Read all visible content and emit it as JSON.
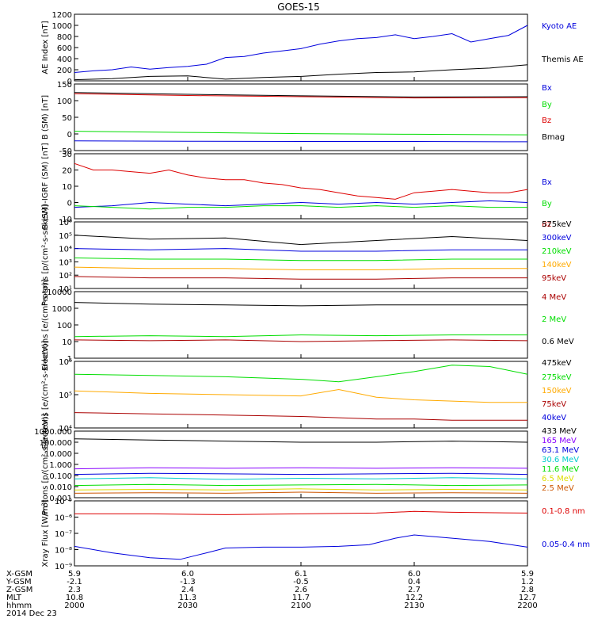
{
  "title": "GOES-15",
  "colors": {
    "blue": "#0000dd",
    "green": "#00dd00",
    "red": "#dd0000",
    "darkred": "#aa0000",
    "orange": "#ffaa00",
    "cyan": "#00cccc",
    "purple": "#8800ff",
    "black": "#000000",
    "yellow": "#dddd00",
    "brown": "#cc5500",
    "magenta": "#cc00cc"
  },
  "chart_data": [
    {
      "type": "line",
      "id": "ae",
      "ylabel": "AE Index [nT]",
      "yticks": [
        "1200",
        "1000",
        "800",
        "600",
        "400",
        "200",
        "0"
      ],
      "ylim": [
        0,
        1200
      ],
      "yscale": "linear",
      "series": [
        {
          "name": "Kyoto AE",
          "color": "#0000dd",
          "x": [
            0,
            5,
            10,
            15,
            20,
            25,
            30,
            35,
            40,
            45,
            50,
            55,
            60,
            65,
            70,
            75,
            80,
            85,
            90,
            95,
            100,
            105,
            110,
            115,
            120
          ],
          "y": [
            150,
            180,
            200,
            250,
            210,
            240,
            260,
            300,
            420,
            440,
            500,
            540,
            580,
            660,
            720,
            760,
            780,
            830,
            760,
            800,
            850,
            700,
            760,
            820,
            1000
          ]
        },
        {
          "name": "Themis AE",
          "color": "#000000",
          "x": [
            0,
            10,
            20,
            30,
            40,
            50,
            60,
            70,
            80,
            90,
            100,
            110,
            120
          ],
          "y": [
            20,
            40,
            80,
            90,
            30,
            60,
            80,
            120,
            150,
            160,
            200,
            230,
            290
          ]
        }
      ]
    },
    {
      "type": "line",
      "id": "b",
      "ylabel": "B (SM) [nT]",
      "yticks": [
        "150",
        "100",
        "50",
        "0",
        "-50"
      ],
      "ylim": [
        -60,
        160
      ],
      "yscale": "linear",
      "series": [
        {
          "name": "Bx",
          "color": "#0000dd",
          "x": [
            0,
            30,
            60,
            90,
            120
          ],
          "y": [
            -28,
            -29,
            -30,
            -30,
            -31
          ]
        },
        {
          "name": "By",
          "color": "#00dd00",
          "x": [
            0,
            30,
            60,
            90,
            120
          ],
          "y": [
            4,
            0,
            -4,
            -6,
            -8
          ]
        },
        {
          "name": "Bz",
          "color": "#dd0000",
          "x": [
            0,
            30,
            60,
            90,
            120
          ],
          "y": [
            128,
            122,
            118,
            114,
            115
          ]
        },
        {
          "name": "Bmag",
          "color": "#000000",
          "x": [
            0,
            30,
            60,
            90,
            120
          ],
          "y": [
            132,
            126,
            121,
            117,
            118
          ]
        }
      ]
    },
    {
      "type": "line",
      "id": "db",
      "ylabel": "B (SM)-IGRF (SM) [nT]",
      "yticks": [
        "30",
        "20",
        "10",
        "0",
        "-10"
      ],
      "ylim": [
        -10,
        30
      ],
      "yscale": "linear",
      "series": [
        {
          "name": "Bx",
          "color": "#0000dd",
          "x": [
            0,
            10,
            20,
            30,
            40,
            50,
            60,
            70,
            80,
            90,
            100,
            110,
            120
          ],
          "y": [
            -3,
            -2,
            0,
            -1,
            -2,
            -1,
            0,
            -1,
            0,
            -1,
            0,
            1,
            0
          ]
        },
        {
          "name": "By",
          "color": "#00dd00",
          "x": [
            0,
            10,
            20,
            30,
            40,
            50,
            60,
            70,
            80,
            90,
            100,
            110,
            120
          ],
          "y": [
            -2,
            -3,
            -4,
            -3,
            -3,
            -2,
            -2,
            -3,
            -2,
            -3,
            -2,
            -3,
            -3
          ]
        },
        {
          "name": "Bz",
          "color": "#dd0000",
          "x": [
            0,
            5,
            10,
            15,
            20,
            25,
            30,
            35,
            40,
            45,
            50,
            55,
            60,
            65,
            70,
            75,
            80,
            85,
            90,
            95,
            100,
            105,
            110,
            115,
            120
          ],
          "y": [
            24,
            20,
            20,
            19,
            18,
            20,
            17,
            15,
            14,
            14,
            12,
            11,
            9,
            8,
            6,
            4,
            3,
            2,
            6,
            7,
            8,
            7,
            6,
            6,
            8
          ]
        }
      ]
    },
    {
      "type": "line",
      "id": "protons-hi",
      "ylabel": "Protons [p/(cm²-s-sr-keV)]",
      "yticks": [
        "10⁶",
        "10⁵",
        "10⁴",
        "10³",
        "10²",
        "10¹"
      ],
      "ylim": [
        1,
        6
      ],
      "yscale": "log10",
      "series": [
        {
          "name": "575keV",
          "color": "#000000",
          "x": [
            0,
            20,
            40,
            60,
            80,
            100,
            120
          ],
          "y": [
            5.0,
            4.7,
            4.8,
            4.3,
            4.6,
            4.9,
            4.6
          ]
        },
        {
          "name": "300keV",
          "color": "#0000dd",
          "x": [
            0,
            20,
            40,
            60,
            80,
            100,
            120
          ],
          "y": [
            4.0,
            3.9,
            4.0,
            3.8,
            3.8,
            3.9,
            3.9
          ]
        },
        {
          "name": "210keV",
          "color": "#00dd00",
          "x": [
            0,
            20,
            40,
            60,
            80,
            100,
            120
          ],
          "y": [
            3.3,
            3.2,
            3.2,
            3.1,
            3.1,
            3.2,
            3.2
          ]
        },
        {
          "name": "140keV",
          "color": "#ffaa00",
          "x": [
            0,
            20,
            40,
            60,
            80,
            100,
            120
          ],
          "y": [
            2.6,
            2.5,
            2.5,
            2.4,
            2.4,
            2.5,
            2.5
          ]
        },
        {
          "name": "95keV",
          "color": "#aa0000",
          "x": [
            0,
            20,
            40,
            60,
            80,
            100,
            120
          ],
          "y": [
            1.9,
            1.8,
            1.8,
            1.7,
            1.7,
            1.8,
            1.8
          ]
        }
      ]
    },
    {
      "type": "line",
      "id": "electrons-mev",
      "ylabel": "Electrons [e/(cm²-s-sr)]",
      "yticks": [
        "10000",
        "1000",
        "100",
        "10",
        "1"
      ],
      "ylim": [
        0,
        4
      ],
      "yscale": "log10",
      "series": [
        {
          "name": "4 MeV",
          "color": "#aa0000",
          "x": [
            0,
            20,
            40,
            60,
            80,
            100,
            120
          ],
          "y": [
            1.1,
            1.05,
            1.1,
            1.0,
            1.05,
            1.1,
            1.05
          ]
        },
        {
          "name": "2 MeV",
          "color": "#00dd00",
          "x": [
            0,
            20,
            40,
            60,
            80,
            100,
            120
          ],
          "y": [
            1.3,
            1.35,
            1.3,
            1.4,
            1.35,
            1.4,
            1.4
          ]
        },
        {
          "name": "0.6 MeV",
          "color": "#000000",
          "x": [
            0,
            20,
            40,
            60,
            80,
            100,
            120
          ],
          "y": [
            3.35,
            3.25,
            3.2,
            3.15,
            3.2,
            3.2,
            3.2
          ]
        }
      ]
    },
    {
      "type": "line",
      "id": "electrons-kev",
      "ylabel": "Electrons [e/(cm²-s-sr-keV)]",
      "yticks": [
        "10⁶",
        "10⁵",
        "10⁴"
      ],
      "ylim": [
        3.4,
        6
      ],
      "yscale": "log10",
      "series": [
        {
          "name": "475keV",
          "color": "#000000",
          "x": [],
          "y": []
        },
        {
          "name": "275keV",
          "color": "#00dd00",
          "x": [
            0,
            20,
            40,
            60,
            70,
            80,
            90,
            100,
            110,
            120
          ],
          "y": [
            5.5,
            5.45,
            5.4,
            5.3,
            5.2,
            5.4,
            5.6,
            5.85,
            5.8,
            5.5
          ]
        },
        {
          "name": "150keV",
          "color": "#ffaa00",
          "x": [
            0,
            20,
            40,
            60,
            70,
            80,
            90,
            100,
            110,
            120
          ],
          "y": [
            4.85,
            4.75,
            4.7,
            4.65,
            4.9,
            4.6,
            4.5,
            4.45,
            4.4,
            4.4
          ]
        },
        {
          "name": "75keV",
          "color": "#aa0000",
          "x": [
            0,
            20,
            40,
            60,
            70,
            80,
            90,
            100,
            110,
            120
          ],
          "y": [
            4.0,
            3.95,
            3.9,
            3.85,
            3.8,
            3.75,
            3.75,
            3.7,
            3.7,
            3.7
          ]
        },
        {
          "name": "40keV",
          "color": "#0000dd",
          "x": [],
          "y": []
        }
      ]
    },
    {
      "type": "line",
      "id": "protons-mev",
      "ylabel": "Protons [p/(cm²-s-sr-keV)]",
      "yticks": [
        "1000.000",
        "100.000",
        "10.000",
        "1.000",
        "0.100",
        "0.010",
        "0.001"
      ],
      "ylim": [
        -3,
        3
      ],
      "yscale": "log10",
      "series": [
        {
          "name": "433 MeV",
          "color": "#000000",
          "x": [
            0,
            20,
            40,
            60,
            80,
            100,
            120
          ],
          "y": [
            2.3,
            2.2,
            2.1,
            2.0,
            2.0,
            2.1,
            2.0
          ]
        },
        {
          "name": "165 MeV",
          "color": "#8800ff",
          "x": [
            0,
            20,
            40,
            60,
            80,
            100,
            120
          ],
          "y": [
            -0.4,
            -0.3,
            -0.35,
            -0.3,
            -0.35,
            -0.3,
            -0.35
          ]
        },
        {
          "name": "63.1 MeV",
          "color": "#0000dd",
          "x": [
            0,
            20,
            40,
            60,
            80,
            100,
            120
          ],
          "y": [
            -0.9,
            -0.8,
            -0.85,
            -0.9,
            -0.85,
            -0.8,
            -0.9
          ]
        },
        {
          "name": "30.6 MeV",
          "color": "#00cccc",
          "x": [
            0,
            20,
            40,
            60,
            80,
            100,
            120
          ],
          "y": [
            -1.3,
            -1.2,
            -1.35,
            -1.25,
            -1.3,
            -1.2,
            -1.3
          ]
        },
        {
          "name": "11.6 MeV",
          "color": "#00dd00",
          "x": [
            0,
            20,
            40,
            60,
            80,
            100,
            120
          ],
          "y": [
            -1.9,
            -1.8,
            -1.9,
            -1.85,
            -1.8,
            -1.9,
            -1.85
          ]
        },
        {
          "name": "6.5 MeV",
          "color": "#dddd00",
          "x": [
            0,
            20,
            40,
            60,
            80,
            100,
            120
          ],
          "y": [
            -2.3,
            -2.25,
            -2.3,
            -2.2,
            -2.3,
            -2.25,
            -2.3
          ]
        },
        {
          "name": "2.5 MeV",
          "color": "#cc5500",
          "x": [
            0,
            20,
            40,
            60,
            80,
            100,
            120
          ],
          "y": [
            -2.6,
            -2.55,
            -2.6,
            -2.5,
            -2.6,
            -2.55,
            -2.6
          ]
        }
      ]
    },
    {
      "type": "line",
      "id": "xray",
      "ylabel": "Xray Flux [W/m²]",
      "yticks": [
        "10⁻⁵",
        "10⁻⁶",
        "10⁻⁷",
        "10⁻⁸",
        "10⁻⁹"
      ],
      "ylim": [
        -9,
        -5
      ],
      "yscale": "log10",
      "series": [
        {
          "name": "0.1-0.8 nm",
          "color": "#dd0000",
          "x": [
            0,
            20,
            40,
            60,
            80,
            90,
            100,
            120
          ],
          "y": [
            -5.8,
            -5.8,
            -5.85,
            -5.8,
            -5.75,
            -5.65,
            -5.7,
            -5.75
          ]
        },
        {
          "name": "0.05-0.4 nm",
          "color": "#0000dd",
          "x": [
            0,
            10,
            20,
            28,
            35,
            40,
            50,
            60,
            70,
            78,
            85,
            90,
            100,
            110,
            120
          ],
          "y": [
            -7.8,
            -8.2,
            -8.5,
            -8.6,
            -8.2,
            -7.9,
            -7.85,
            -7.85,
            -7.8,
            -7.7,
            -7.3,
            -7.1,
            -7.3,
            -7.5,
            -7.85
          ]
        }
      ]
    }
  ],
  "xaxis": {
    "row_labels": [
      "X-GSM",
      "Y-GSM",
      "Z-GSM",
      "MLT",
      "hhmm",
      "2014 Dec 23"
    ],
    "columns": [
      {
        "x": 0,
        "values": [
          "5.9",
          "-2.1",
          "2.3",
          "10.8",
          "2000"
        ]
      },
      {
        "x": 30,
        "values": [
          "6.0",
          "-1.3",
          "2.4",
          "11.3",
          "2030"
        ]
      },
      {
        "x": 60,
        "values": [
          "6.1",
          "-0.5",
          "2.6",
          "11.7",
          "2100"
        ]
      },
      {
        "x": 90,
        "values": [
          "6.0",
          "0.4",
          "2.7",
          "12.2",
          "2130"
        ]
      },
      {
        "x": 120,
        "values": [
          "5.9",
          "1.2",
          "2.8",
          "12.7",
          "2200"
        ]
      }
    ],
    "range": [
      0,
      120
    ]
  }
}
